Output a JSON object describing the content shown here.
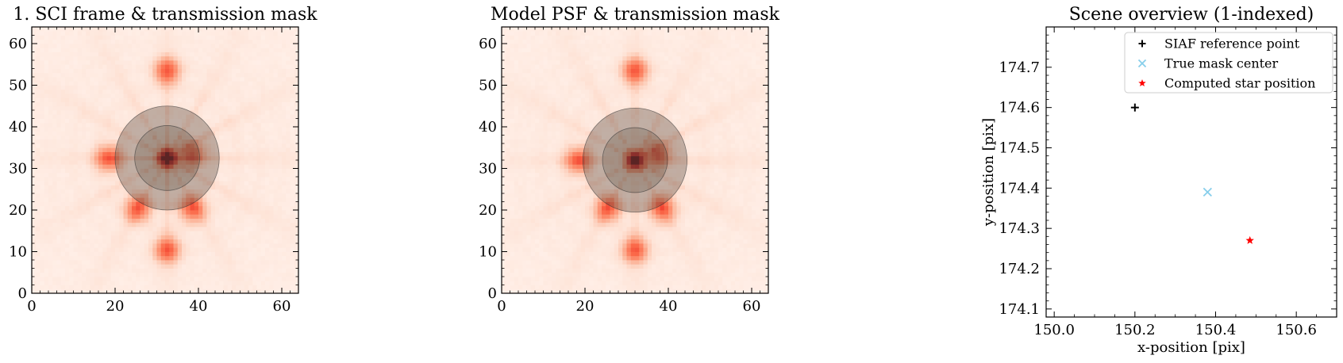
{
  "chart_data": [
    {
      "type": "heatmap",
      "title": "1. SCI frame & transmission mask",
      "xlim": [
        0,
        64
      ],
      "ylim": [
        0,
        64
      ],
      "xticks": [
        "0",
        "20",
        "40",
        "60"
      ],
      "yticks": [
        "0",
        "10",
        "20",
        "30",
        "40",
        "50",
        "60"
      ],
      "colormap": "Reds",
      "star_center": [
        32.5,
        32.5
      ],
      "mask_rings": [
        {
          "radius": 12.5,
          "opacity": 0.35
        },
        {
          "radius": 7.8,
          "opacity": 0.25
        }
      ],
      "bright_spots": [
        [
          32.5,
          32.5
        ],
        [
          18.5,
          32.5
        ],
        [
          38.5,
          33.5
        ],
        [
          25.5,
          20.5
        ],
        [
          38.5,
          20.5
        ],
        [
          32.5,
          53.5
        ],
        [
          32.5,
          10.5
        ]
      ],
      "xlabel": "",
      "ylabel": ""
    },
    {
      "type": "heatmap",
      "title": "Model PSF & transmission mask",
      "xlim": [
        0,
        64
      ],
      "ylim": [
        0,
        64
      ],
      "xticks": [
        "0",
        "20",
        "40",
        "60"
      ],
      "yticks": [
        "0",
        "10",
        "20",
        "30",
        "40",
        "50",
        "60"
      ],
      "colormap": "Reds",
      "star_center": [
        32.0,
        32.0
      ],
      "mask_rings": [
        {
          "radius": 12.5,
          "opacity": 0.35
        },
        {
          "radius": 7.8,
          "opacity": 0.25
        }
      ],
      "bright_spots": [
        [
          32.0,
          32.0
        ],
        [
          18.5,
          32.0
        ],
        [
          37.5,
          33.5
        ],
        [
          25.5,
          20.5
        ],
        [
          38.5,
          20.5
        ],
        [
          32.0,
          53.5
        ],
        [
          32.0,
          10.5
        ]
      ],
      "xlabel": "",
      "ylabel": ""
    },
    {
      "type": "scatter",
      "title": "Scene overview (1-indexed)",
      "xlabel": "x-position [pix]",
      "ylabel": "y-position [pix]",
      "xlim": [
        149.98,
        150.7
      ],
      "ylim": [
        174.08,
        174.8
      ],
      "xticks": [
        150.0,
        150.2,
        150.4,
        150.6
      ],
      "xtick_labels": [
        "150.0",
        "150.2",
        "150.4",
        "150.6"
      ],
      "yticks": [
        174.1,
        174.2,
        174.3,
        174.4,
        174.5,
        174.6,
        174.7
      ],
      "ytick_labels": [
        "174.1",
        "174.2",
        "174.3",
        "174.4",
        "174.5",
        "174.6",
        "174.7"
      ],
      "legend_position": "top-right",
      "series": [
        {
          "name": "SIAF reference point",
          "marker": "plus",
          "color": "#000000",
          "x": [
            150.2
          ],
          "y": [
            174.6
          ]
        },
        {
          "name": "True mask center",
          "marker": "x",
          "color": "#87ceeb",
          "x": [
            150.38
          ],
          "y": [
            174.39
          ]
        },
        {
          "name": "Computed star position",
          "marker": "star",
          "color": "#ff0000",
          "x": [
            150.485
          ],
          "y": [
            174.27
          ]
        }
      ]
    }
  ]
}
